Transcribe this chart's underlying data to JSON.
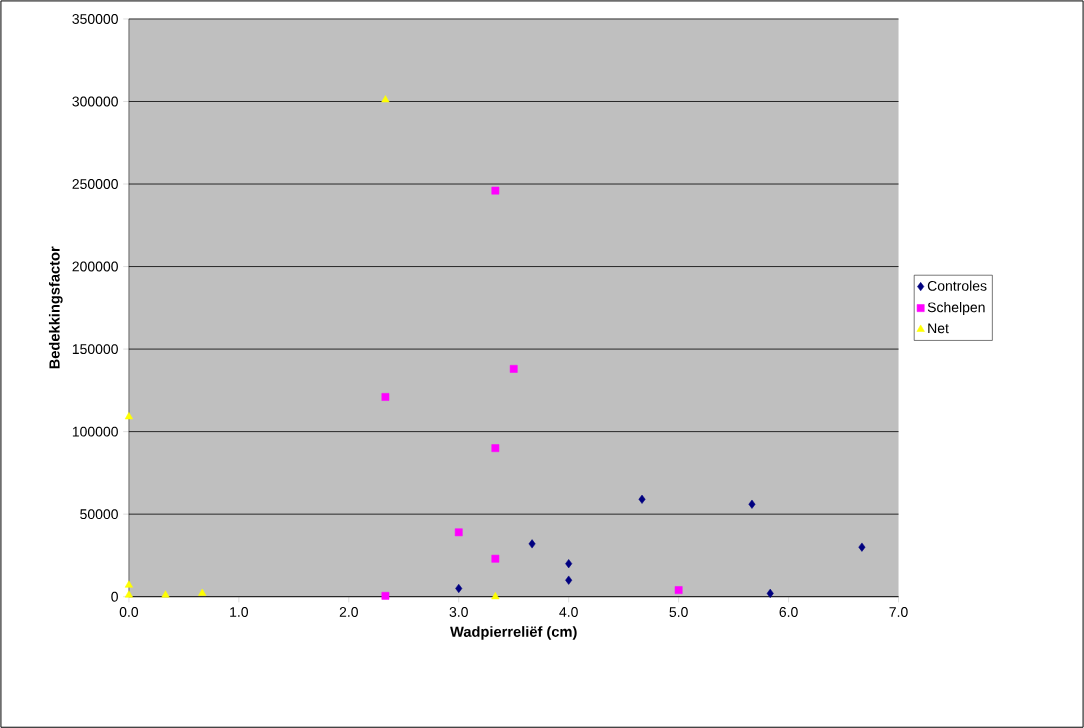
{
  "chart_data": {
    "type": "scatter",
    "xlabel": "Wadpierreliëf (cm)",
    "ylabel": "Bedekkingsfactor",
    "xlim": [
      0,
      7
    ],
    "xticks": [
      {
        "value": 0,
        "label": "0.0"
      },
      {
        "value": 1,
        "label": "1.0"
      },
      {
        "value": 2,
        "label": "2.0"
      },
      {
        "value": 3,
        "label": "3.0"
      },
      {
        "value": 4,
        "label": "4.0"
      },
      {
        "value": 5,
        "label": "5.0"
      },
      {
        "value": 6,
        "label": "6.0"
      },
      {
        "value": 7,
        "label": "7.0"
      }
    ],
    "ylim": [
      0,
      350000
    ],
    "yticks": [
      0,
      50000,
      100000,
      150000,
      200000,
      250000,
      300000,
      350000
    ],
    "grid": "y",
    "legend": "right",
    "series": [
      {
        "name": "Controles",
        "color": "#000080",
        "marker": "diamond",
        "x": [
          3.0,
          3.667,
          4.0,
          4.0,
          4.667,
          5.667,
          5.833,
          6.667
        ],
        "values": [
          5000,
          32000,
          20000,
          10000,
          59000,
          56000,
          2000,
          30000
        ]
      },
      {
        "name": "Schelpen",
        "color": "#ff00ff",
        "marker": "square",
        "x": [
          2.333,
          2.333,
          3.333,
          3.333,
          3.333,
          3.0,
          3.5,
          5.0
        ],
        "values": [
          121000,
          500,
          246000,
          90000,
          23000,
          39000,
          138000,
          4000
        ]
      },
      {
        "name": "Net",
        "color": "#ffff00",
        "marker": "triangle",
        "x": [
          0,
          2.333,
          0,
          0,
          0.333,
          0.667,
          3.333
        ],
        "values": [
          109000,
          301000,
          7000,
          1000,
          1000,
          2000,
          0
        ]
      }
    ]
  }
}
